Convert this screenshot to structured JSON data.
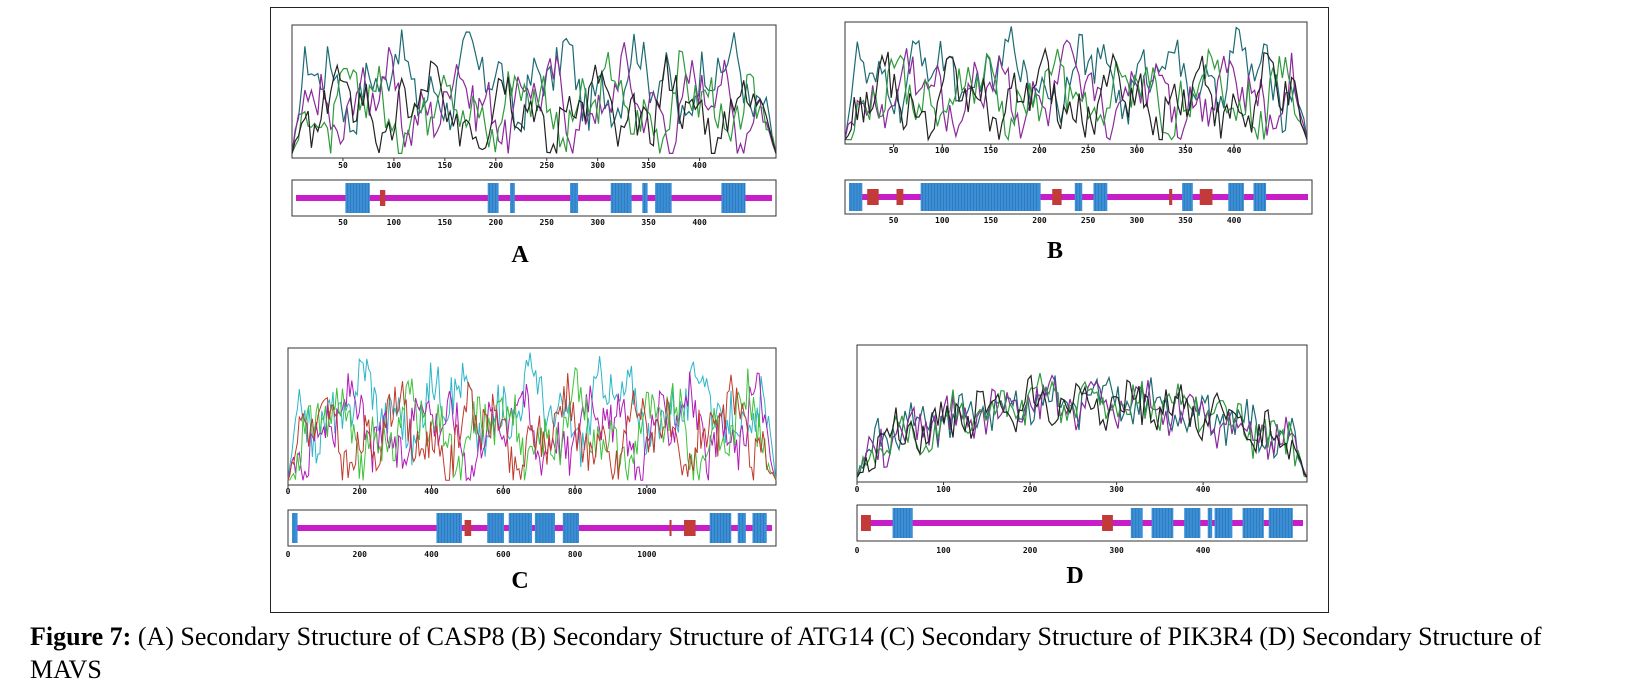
{
  "figure": {
    "panels": [
      {
        "id": "A",
        "label": "A",
        "length": 480,
        "plot_ticks": [
          "50",
          "100",
          "150",
          "200",
          "250",
          "300",
          "350",
          "400"
        ],
        "bar_ticks": [
          "50",
          "100",
          "150",
          "200",
          "250",
          "300",
          "350",
          "400"
        ],
        "colors": [
          "#1c6b73",
          "#8a2a9a",
          "#2e9a3c",
          "#222222"
        ]
      },
      {
        "id": "B",
        "label": "B",
        "length": 480,
        "plot_ticks": [
          "50",
          "100",
          "150",
          "200",
          "250",
          "300",
          "350",
          "400"
        ],
        "bar_ticks": [
          "50",
          "100",
          "150",
          "200",
          "250",
          "300",
          "350",
          "400"
        ],
        "colors": [
          "#1c6b73",
          "#8a2a9a",
          "#2e9a3c",
          "#222222"
        ]
      },
      {
        "id": "C",
        "label": "C",
        "length": 1350,
        "plot_ticks": [
          "0",
          "200",
          "400",
          "600",
          "800",
          "1000"
        ],
        "bar_ticks": [
          "0",
          "200",
          "400",
          "600",
          "800",
          "1000"
        ],
        "colors": [
          "#2bb6c7",
          "#b21ab8",
          "#3ec23a",
          "#c0392b"
        ]
      },
      {
        "id": "D",
        "label": "D",
        "length": 500,
        "plot_ticks": [
          "0",
          "100",
          "200",
          "300",
          "400"
        ],
        "bar_ticks": [
          "0",
          "100",
          "200",
          "300",
          "400"
        ],
        "colors": [
          "#1c6b73",
          "#8a2a9a",
          "#2e9a3c",
          "#222222"
        ]
      }
    ],
    "structure_colors": {
      "helix": "#3a8fd6",
      "coil": "#c81ec8",
      "strand": "#c23a3a"
    }
  },
  "caption": {
    "label": "Figure 7:",
    "text": " (A) Secondary Structure of CASP8 (B) Secondary Structure of ATG14 (C) Secondary Structure of PIK3R4 (D) Secondary Structure of MAVS"
  }
}
